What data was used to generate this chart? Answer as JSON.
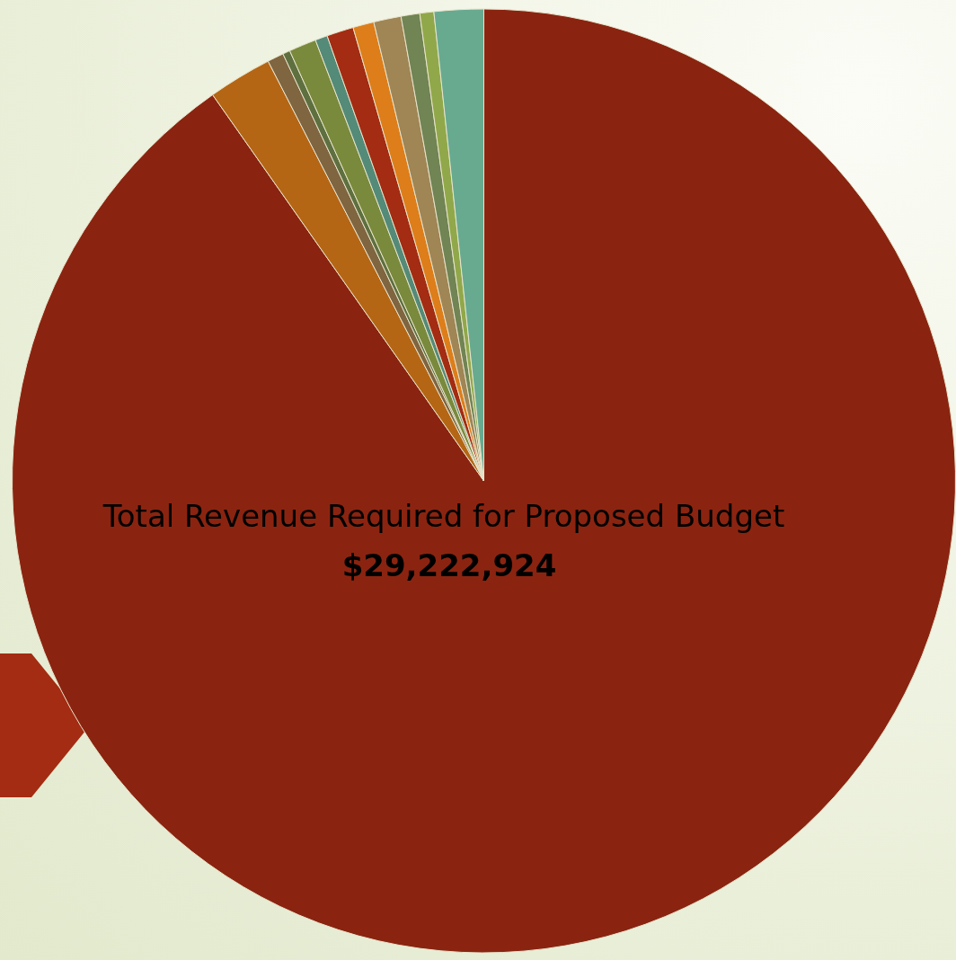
{
  "chart_data": {
    "type": "pie",
    "title": "Total Revenue Required for Proposed Budget",
    "subtitle": "$29,222,924",
    "categories": [
      null,
      null,
      null,
      null,
      null,
      null,
      null,
      null,
      null,
      null,
      null,
      null
    ],
    "values": [
      90.25,
      2.19,
      0.56,
      0.25,
      0.94,
      0.42,
      0.92,
      0.72,
      0.94,
      0.64,
      0.48,
      1.69
    ],
    "colors": [
      "#8a2410",
      "#b56614",
      "#7f6540",
      "#5f7040",
      "#798a3c",
      "#548a78",
      "#a32c12",
      "#dd7e1a",
      "#a08555",
      "#718454",
      "#91a84a",
      "#67aa90"
    ],
    "legend": false
  }
}
